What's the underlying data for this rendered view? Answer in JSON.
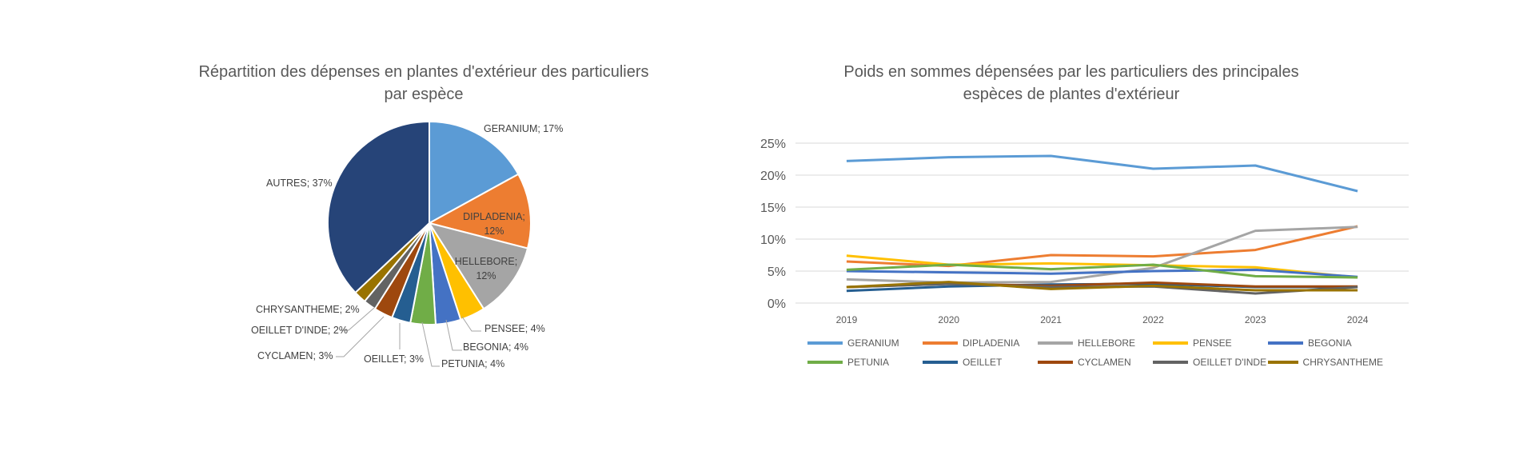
{
  "chart_data": [
    {
      "type": "pie",
      "title": "Répartition des dépenses en plantes d'extérieur des particuliers par espèce",
      "title_lines": [
        "Répartition des dépenses en plantes d'extérieur des particuliers",
        "par espèce"
      ],
      "slices": [
        {
          "name": "GERANIUM",
          "value": 17,
          "label": "GERANIUM; 17%",
          "color": "#5B9BD5"
        },
        {
          "name": "DIPLADENIA",
          "value": 12,
          "label": "DIPLADENIA;",
          "label2": "12%",
          "color": "#ED7D31"
        },
        {
          "name": "HELLEBORE",
          "value": 12,
          "label": "HELLEBORE;",
          "label2": "12%",
          "color": "#A5A5A5"
        },
        {
          "name": "PENSEE",
          "value": 4,
          "label": "PENSEE; 4%",
          "color": "#FFC000"
        },
        {
          "name": "BEGONIA",
          "value": 4,
          "label": "BEGONIA; 4%",
          "color": "#4472C4"
        },
        {
          "name": "PETUNIA",
          "value": 4,
          "label": "PETUNIA; 4%",
          "color": "#70AD47"
        },
        {
          "name": "OEILLET",
          "value": 3,
          "label": "OEILLET; 3%",
          "color": "#255E91"
        },
        {
          "name": "CYCLAMEN",
          "value": 3,
          "label": "CYCLAMEN; 3%",
          "color": "#9E480E"
        },
        {
          "name": "OEILLET D'INDE",
          "value": 2,
          "label": "OEILLET D'INDE; 2%",
          "color": "#636363"
        },
        {
          "name": "CHRYSANTHEME",
          "value": 2,
          "label": "CHRYSANTHEME; 2%",
          "color": "#997300"
        },
        {
          "name": "AUTRES",
          "value": 37,
          "label": "AUTRES; 37%",
          "color": "#264478"
        }
      ]
    },
    {
      "type": "line",
      "title_lines": [
        "Poids en sommes dépensées par les particuliers des principales",
        "espèces de plantes d'extérieur"
      ],
      "x": [
        "2019",
        "2020",
        "2021",
        "2022",
        "2023",
        "2024"
      ],
      "ylim": [
        0,
        25
      ],
      "yticks": [
        "0%",
        "5%",
        "10%",
        "15%",
        "20%",
        "25%"
      ],
      "grid": true,
      "legend": "bottom",
      "series": [
        {
          "name": "GERANIUM",
          "color": "#5B9BD5",
          "values": [
            22.2,
            22.8,
            23.0,
            21.0,
            21.5,
            17.5
          ]
        },
        {
          "name": "DIPLADENIA",
          "color": "#ED7D31",
          "values": [
            6.5,
            5.8,
            7.5,
            7.3,
            8.3,
            12.0
          ]
        },
        {
          "name": "HELLEBORE",
          "color": "#A5A5A5",
          "values": [
            3.7,
            3.2,
            3.3,
            5.5,
            11.3,
            11.9
          ]
        },
        {
          "name": "PENSEE",
          "color": "#FFC000",
          "values": [
            7.4,
            6.0,
            6.2,
            5.9,
            5.6,
            4.0
          ]
        },
        {
          "name": "BEGONIA",
          "color": "#4472C4",
          "values": [
            5.0,
            4.8,
            4.6,
            5.0,
            5.2,
            4.1
          ]
        },
        {
          "name": "PETUNIA",
          "color": "#70AD47",
          "values": [
            5.2,
            6.0,
            5.3,
            6.0,
            4.2,
            4.0
          ]
        },
        {
          "name": "OEILLET",
          "color": "#255E91",
          "values": [
            1.9,
            2.6,
            2.9,
            3.0,
            2.5,
            2.5
          ]
        },
        {
          "name": "CYCLAMEN",
          "color": "#9E480E",
          "values": [
            2.5,
            3.0,
            2.7,
            3.2,
            2.6,
            2.6
          ]
        },
        {
          "name": "OEILLET D'INDE",
          "color": "#636363",
          "values": [
            2.5,
            3.0,
            2.5,
            2.6,
            1.5,
            2.5
          ]
        },
        {
          "name": "CHRYSANTHEME",
          "color": "#997300",
          "values": [
            2.5,
            3.3,
            2.2,
            2.7,
            2.0,
            2.0
          ]
        }
      ]
    }
  ]
}
